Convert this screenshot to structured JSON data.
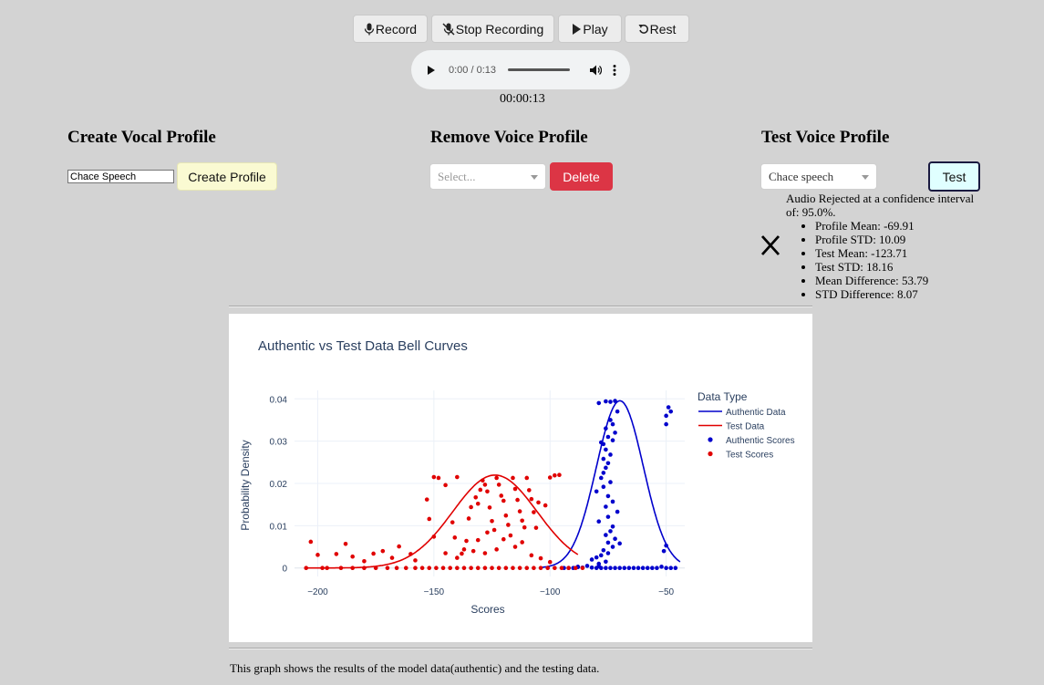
{
  "toolbar": {
    "record_label": "Record",
    "stop_label": "Stop Recording",
    "play_label": "Play",
    "reset_label": "Rest"
  },
  "audio": {
    "time": "0:00 / 0:13",
    "progress": 0
  },
  "elapsed": "00:00:13",
  "create": {
    "title": "Create Vocal Profile",
    "input_value": "Chace Speech",
    "button_label": "Create Profile"
  },
  "remove": {
    "title": "Remove Voice Profile",
    "select_placeholder": "Select...",
    "button_label": "Delete"
  },
  "test": {
    "title": "Test Voice Profile",
    "select_value": "Chace speech",
    "button_label": "Test",
    "result_message": "Audio Rejected at a confidence interval of: 95.0%.",
    "result_icon": "reject-x-icon",
    "stats": [
      "Profile Mean: -69.91",
      "Profile STD: 10.09",
      "Test Mean: -123.71",
      "Test STD: 18.16",
      "Mean Difference: 53.79",
      "STD Difference: 8.07"
    ]
  },
  "caption": "This graph shows the results of the model data(authentic) and the testing data.",
  "colors": {
    "authentic": "#0000cc",
    "test": "#e00000",
    "delete": "#dc3545",
    "create": "#fafad2",
    "test_button": "#e0ffff"
  },
  "chart_data": {
    "type": "line",
    "title": "Authentic vs Test Data Bell Curves",
    "xlabel": "Scores",
    "ylabel": "Probability Density",
    "xlim": [
      -210,
      -42
    ],
    "ylim": [
      -0.002,
      0.042
    ],
    "xticks": [
      -200,
      -150,
      -100,
      -50
    ],
    "xtick_labels": [
      "−200",
      "−150",
      "−100",
      "−50"
    ],
    "yticks": [
      0,
      0.01,
      0.02,
      0.03,
      0.04
    ],
    "ytick_labels": [
      "0",
      "0.01",
      "0.02",
      "0.03",
      "0.04"
    ],
    "grid": true,
    "legend": {
      "title": "Data Type",
      "placement": "right"
    },
    "series": [
      {
        "name": "Authentic Data",
        "kind": "line",
        "color": "#0000cc",
        "mean": -69.91,
        "std": 10.09,
        "x_range": [
          -104,
          -44
        ]
      },
      {
        "name": "Test Data",
        "kind": "line",
        "color": "#e00000",
        "mean": -123.71,
        "std": 18.16,
        "x_range": [
          -205,
          -88
        ]
      },
      {
        "name": "Authentic Scores",
        "kind": "scatter",
        "color": "#0000cc",
        "points": [
          [
            -72,
            0.0395
          ],
          [
            -74,
            0.0393
          ],
          [
            -76,
            0.0394
          ],
          [
            -79,
            0.039
          ],
          [
            -71,
            0.037
          ],
          [
            -49,
            0.038
          ],
          [
            -48,
            0.037
          ],
          [
            -50,
            0.036
          ],
          [
            -50,
            0.034
          ],
          [
            -74,
            0.035
          ],
          [
            -73,
            0.034
          ],
          [
            -76,
            0.033
          ],
          [
            -72,
            0.032
          ],
          [
            -75,
            0.031
          ],
          [
            -78,
            0.0297
          ],
          [
            -73,
            0.0302
          ],
          [
            -77,
            0.0293
          ],
          [
            -76,
            0.028
          ],
          [
            -74,
            0.0268
          ],
          [
            -77,
            0.0258
          ],
          [
            -75,
            0.0248
          ],
          [
            -76,
            0.0237
          ],
          [
            -77,
            0.0225
          ],
          [
            -78,
            0.0213
          ],
          [
            -74,
            0.0203
          ],
          [
            -77,
            0.0192
          ],
          [
            -80,
            0.0181
          ],
          [
            -75,
            0.017
          ],
          [
            -73,
            0.0157
          ],
          [
            -76,
            0.0145
          ],
          [
            -71,
            0.0133
          ],
          [
            -75,
            0.0121
          ],
          [
            -79,
            0.011
          ],
          [
            -73,
            0.0098
          ],
          [
            -74,
            0.0087
          ],
          [
            -76,
            0.0078
          ],
          [
            -72,
            0.0069
          ],
          [
            -75,
            0.006
          ],
          [
            -70,
            0.0058
          ],
          [
            -73,
            0.005
          ],
          [
            -77,
            0.0042
          ],
          [
            -50,
            0.0053
          ],
          [
            -51,
            0.004
          ],
          [
            -75,
            0.0035
          ],
          [
            -78,
            0.003
          ],
          [
            -80,
            0.0025
          ],
          [
            -82,
            0.002
          ],
          [
            -76,
            0.0015
          ],
          [
            -79,
            0.001
          ],
          [
            -84,
            0.0005
          ],
          [
            -52,
            0.0003
          ],
          [
            -88,
            0.0002
          ],
          [
            -86,
            0.0001
          ],
          [
            -82,
            0.0001
          ],
          [
            -80,
            0
          ],
          [
            -78,
            0
          ],
          [
            -76,
            0
          ],
          [
            -74,
            0
          ],
          [
            -72,
            0
          ],
          [
            -70,
            0
          ],
          [
            -68,
            0
          ],
          [
            -66,
            0
          ],
          [
            -64,
            0
          ],
          [
            -62,
            0
          ],
          [
            -60,
            0
          ],
          [
            -58,
            0
          ],
          [
            -56,
            0
          ],
          [
            -54,
            0
          ],
          [
            -50,
            0
          ],
          [
            -48,
            0
          ],
          [
            -46,
            0
          ],
          [
            -90,
            0
          ],
          [
            -92,
            0
          ],
          [
            -94,
            0
          ],
          [
            -88,
            0.0003
          ],
          [
            -79,
            0.0004
          ]
        ]
      },
      {
        "name": "Test Scores",
        "kind": "scatter",
        "color": "#e00000",
        "points": [
          [
            -205,
            0
          ],
          [
            -203,
            0.0062
          ],
          [
            -200,
            0.0031
          ],
          [
            -198,
            0
          ],
          [
            -192,
            0.0033
          ],
          [
            -188,
            0.0057
          ],
          [
            -185,
            0.0027
          ],
          [
            -180,
            0.0016
          ],
          [
            -176,
            0.0034
          ],
          [
            -172,
            0.004
          ],
          [
            -168,
            0.0024
          ],
          [
            -165,
            0.0051
          ],
          [
            -160,
            0.0033
          ],
          [
            -158,
            0.0018
          ],
          [
            -153,
            0.0162
          ],
          [
            -152,
            0.0116
          ],
          [
            -150,
            0.0215
          ],
          [
            -148,
            0.0213
          ],
          [
            -145,
            0.0196
          ],
          [
            -140,
            0.0215
          ],
          [
            -142,
            0.0108
          ],
          [
            -141,
            0.0072
          ],
          [
            -138,
            0.0034
          ],
          [
            -136,
            0.0064
          ],
          [
            -135,
            0.0117
          ],
          [
            -134,
            0.0144
          ],
          [
            -132,
            0.0167
          ],
          [
            -131,
            0.0152
          ],
          [
            -130,
            0.0185
          ],
          [
            -129,
            0.0207
          ],
          [
            -128,
            0.0197
          ],
          [
            -127,
            0.0181
          ],
          [
            -126,
            0.0143
          ],
          [
            -125,
            0.0111
          ],
          [
            -124,
            0.009
          ],
          [
            -123,
            0.0213
          ],
          [
            -122,
            0.0197
          ],
          [
            -121,
            0.0171
          ],
          [
            -120,
            0.0159
          ],
          [
            -119,
            0.0124
          ],
          [
            -118,
            0.0102
          ],
          [
            -117,
            0.0077
          ],
          [
            -116,
            0.0213
          ],
          [
            -115,
            0.0187
          ],
          [
            -114,
            0.0161
          ],
          [
            -113,
            0.0134
          ],
          [
            -112,
            0.0112
          ],
          [
            -111,
            0.0096
          ],
          [
            -110,
            0.0213
          ],
          [
            -109,
            0.0184
          ],
          [
            -108,
            0.0163
          ],
          [
            -107,
            0.0132
          ],
          [
            -106,
            0.0095
          ],
          [
            -105,
            0.0155
          ],
          [
            -102,
            0.0148
          ],
          [
            -100,
            0.0214
          ],
          [
            -98,
            0.0219
          ],
          [
            -96,
            0.022
          ],
          [
            -127,
            0.0084
          ],
          [
            -131,
            0.0066
          ],
          [
            -137,
            0.0044
          ],
          [
            -140,
            0.0024
          ],
          [
            -145,
            0.0035
          ],
          [
            -150,
            0.0074
          ],
          [
            -133,
            0.004
          ],
          [
            -128,
            0.0035
          ],
          [
            -123,
            0.0044
          ],
          [
            -120,
            0.0068
          ],
          [
            -115,
            0.005
          ],
          [
            -112,
            0.0061
          ],
          [
            -108,
            0.003
          ],
          [
            -104,
            0.0023
          ],
          [
            -100,
            0.0014
          ],
          [
            -196,
            0
          ],
          [
            -190,
            0
          ],
          [
            -185,
            0
          ],
          [
            -180,
            0
          ],
          [
            -175,
            0
          ],
          [
            -170,
            0
          ],
          [
            -166,
            0
          ],
          [
            -162,
            0
          ],
          [
            -158,
            0
          ],
          [
            -155,
            0
          ],
          [
            -152,
            0
          ],
          [
            -149,
            0
          ],
          [
            -146,
            0
          ],
          [
            -143,
            0
          ],
          [
            -140,
            0
          ],
          [
            -137,
            0
          ],
          [
            -134,
            0
          ],
          [
            -131,
            0
          ],
          [
            -128,
            0
          ],
          [
            -125,
            0
          ],
          [
            -122,
            0
          ],
          [
            -119,
            0
          ],
          [
            -116,
            0
          ],
          [
            -113,
            0
          ],
          [
            -110,
            0
          ],
          [
            -107,
            0
          ],
          [
            -104,
            0
          ],
          [
            -101,
            0
          ],
          [
            -98,
            0
          ],
          [
            -95,
            0
          ],
          [
            -92,
            0
          ],
          [
            -89,
            0
          ],
          [
            -86,
            0
          ]
        ]
      }
    ]
  }
}
